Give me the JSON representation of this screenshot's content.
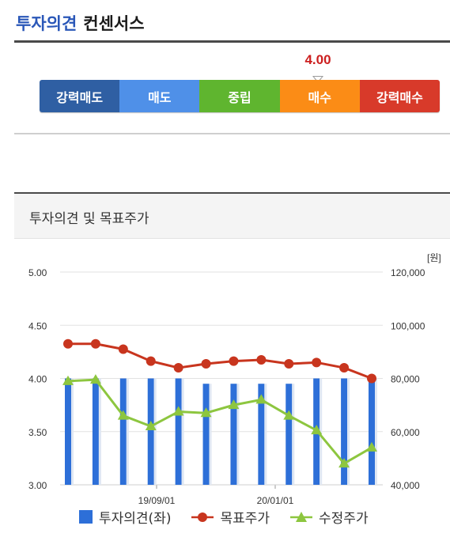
{
  "header": {
    "title_part1": "투자의견",
    "title_part2": "컨센서스"
  },
  "consensus": {
    "value": "4.00",
    "scale": [
      {
        "label": "강력매도",
        "color": "#2f5fa3"
      },
      {
        "label": "매도",
        "color": "#4f90e8"
      },
      {
        "label": "중립",
        "color": "#5fb52f"
      },
      {
        "label": "매수",
        "color": "#fb8c16"
      },
      {
        "label": "강력매수",
        "color": "#d83a2a"
      }
    ]
  },
  "panel": {
    "title": "투자의견 및 목표주가"
  },
  "chart_data": {
    "type": "bar",
    "unit_label": "[원]",
    "x_ticks": [
      "19/09/01",
      "20/01/01"
    ],
    "y_left": {
      "ticks": [
        "5.00",
        "4.50",
        "4.00",
        "3.50",
        "3.00"
      ],
      "range": [
        3.0,
        5.0
      ]
    },
    "y_right": {
      "ticks": [
        "120,000",
        "100,000",
        "80,000",
        "60,000",
        "40,000"
      ],
      "range": [
        40000,
        120000
      ]
    },
    "legend": [
      "투자의견(좌)",
      "목표주가",
      "수정주가"
    ],
    "series": [
      {
        "name": "투자의견(좌)",
        "type": "bar",
        "axis": "left",
        "color": "#2d6fd8",
        "values": [
          4.0,
          4.0,
          4.0,
          4.0,
          4.0,
          3.95,
          3.95,
          3.95,
          3.95,
          4.0,
          4.0,
          4.0
        ]
      },
      {
        "name": "목표주가",
        "type": "line",
        "axis": "right",
        "color": "#c8351e",
        "values": [
          93000,
          93000,
          91000,
          86500,
          84000,
          85500,
          86500,
          87000,
          85500,
          86000,
          84000,
          80000
        ]
      },
      {
        "name": "수정주가",
        "type": "line",
        "axis": "right",
        "color": "#8dc63f",
        "values": [
          79000,
          79500,
          66000,
          62000,
          67500,
          67000,
          70000,
          72000,
          66000,
          60500,
          48000,
          54000
        ]
      }
    ]
  }
}
